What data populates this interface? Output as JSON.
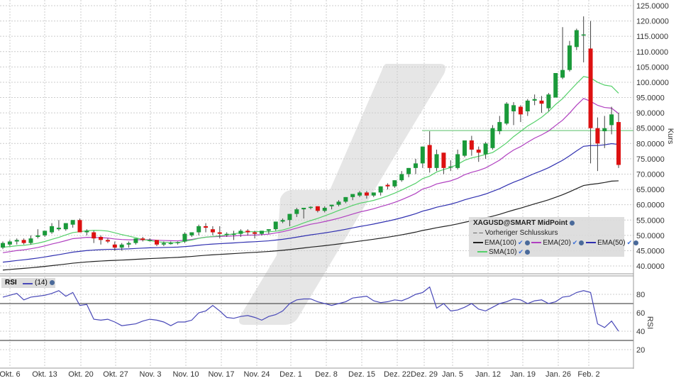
{
  "chart_data": [
    {
      "type": "candlestick",
      "instrument": "XAGUSD@SMART MidPoint",
      "ylabel": "Kurs",
      "ylim": [
        38,
        126
      ],
      "yticks": [
        "125.0000",
        "120.0000",
        "115.0000",
        "110.0000",
        "105.0000",
        "100.0000",
        "95.0000",
        "90.0000",
        "85.0000",
        "80.0000",
        "75.0000",
        "70.0000",
        "65.0000",
        "60.0000",
        "55.0000",
        "50.0000",
        "45.0000",
        "40.0000"
      ],
      "xticks": [
        "Okt. 6",
        "Okt. 13",
        "Okt. 20",
        "Okt. 27",
        "Nov. 3",
        "Nov. 10",
        "Nov. 17",
        "Nov. 24",
        "Dez. 1",
        "Dez. 8",
        "Dez. 15",
        "Dez. 22",
        "Dez. 29",
        "Jan. 5",
        "Jan. 12",
        "Jan. 19",
        "Jan. 26",
        "Feb. 2"
      ],
      "grid": true,
      "reference_line": 84.2,
      "ohlc": [
        [
          46,
          48,
          45.5,
          47.5
        ],
        [
          47,
          48.5,
          46.5,
          48
        ],
        [
          48,
          49,
          47,
          48.5
        ],
        [
          48.5,
          49,
          47,
          47.5
        ],
        [
          47.5,
          50,
          47,
          49
        ],
        [
          49.5,
          52,
          49,
          50
        ],
        [
          50,
          51.5,
          49.5,
          51.5
        ],
        [
          51,
          54,
          50.5,
          53
        ],
        [
          52,
          55,
          51.5,
          52.5
        ],
        [
          52,
          54,
          51.5,
          54
        ],
        [
          53.5,
          55,
          52.5,
          55
        ],
        [
          55,
          55.5,
          51,
          51
        ],
        [
          51,
          52,
          50,
          51.5
        ],
        [
          51,
          51.5,
          47.5,
          49
        ],
        [
          49.5,
          50,
          47,
          48.5
        ],
        [
          48.5,
          49,
          47.5,
          48
        ],
        [
          47,
          48,
          45,
          46
        ],
        [
          46,
          47.5,
          45,
          47
        ],
        [
          47,
          48,
          46,
          47.5
        ],
        [
          47.5,
          49,
          47,
          49
        ],
        [
          49,
          49.5,
          48,
          48.5
        ],
        [
          48.5,
          49,
          48,
          48.5
        ],
        [
          48.5,
          48.5,
          46.5,
          47
        ],
        [
          47,
          48,
          46.5,
          47.5
        ],
        [
          47.5,
          48,
          47,
          47.5
        ],
        [
          47.5,
          48,
          47,
          47.8
        ],
        [
          48,
          51,
          47.5,
          50.5
        ],
        [
          50,
          51,
          49.5,
          51
        ],
        [
          51,
          53.5,
          50,
          53
        ],
        [
          53,
          54,
          51,
          52.5
        ],
        [
          52,
          53,
          50,
          51
        ],
        [
          51,
          53,
          49,
          50.5
        ],
        [
          50.5,
          51,
          49.5,
          50.5
        ],
        [
          50.5,
          51.5,
          48.5,
          50.5
        ],
        [
          50.5,
          52,
          49.5,
          51.5
        ],
        [
          51.5,
          52,
          50,
          51
        ],
        [
          51,
          51.5,
          49,
          50.5
        ],
        [
          50.5,
          51.5,
          50,
          51.5
        ],
        [
          51.5,
          52,
          50.5,
          52
        ],
        [
          52,
          54.5,
          51.5,
          54.5
        ],
        [
          54.5,
          55.5,
          54,
          55
        ],
        [
          55,
          57,
          53,
          57
        ],
        [
          57,
          59,
          56,
          58.5
        ],
        [
          58.5,
          59,
          55.5,
          59
        ],
        [
          59,
          59.5,
          58.5,
          59.3
        ],
        [
          59.5,
          59.5,
          57.5,
          58
        ],
        [
          58,
          59.5,
          57.5,
          59
        ],
        [
          59.5,
          60,
          58.5,
          60
        ],
        [
          60,
          61.5,
          59.5,
          61
        ],
        [
          61,
          62.5,
          60.5,
          62.5
        ],
        [
          62.5,
          63,
          61.5,
          63.5
        ],
        [
          63,
          64.5,
          62.5,
          64
        ],
        [
          64,
          64.5,
          62,
          63
        ],
        [
          63,
          64,
          62.5,
          64
        ],
        [
          64,
          66,
          63,
          66
        ],
        [
          66.5,
          67,
          65,
          66
        ],
        [
          66,
          68,
          65.5,
          68
        ],
        [
          68,
          71,
          67.5,
          70
        ],
        [
          70,
          72,
          69,
          72
        ],
        [
          72,
          75,
          70,
          73.5
        ],
        [
          73.5,
          79,
          72,
          79
        ],
        [
          79.5,
          84,
          70.5,
          72
        ],
        [
          72,
          78,
          71,
          76.5
        ],
        [
          77,
          77,
          70,
          72
        ],
        [
          72.5,
          74.5,
          71,
          72.5
        ],
        [
          72,
          78,
          71.5,
          76.5
        ],
        [
          76,
          81,
          75.5,
          81
        ],
        [
          81,
          82.5,
          76,
          78
        ],
        [
          78,
          79,
          74,
          77
        ],
        [
          76.5,
          80.5,
          75,
          80
        ],
        [
          78.5,
          86,
          78,
          85
        ],
        [
          84,
          89,
          83,
          87
        ],
        [
          86.5,
          93.5,
          86,
          93
        ],
        [
          90.5,
          93.5,
          86,
          92.5
        ],
        [
          92,
          92.5,
          87,
          89.5
        ],
        [
          90.5,
          94.5,
          89,
          94
        ],
        [
          94,
          96,
          92.5,
          94.5
        ],
        [
          94,
          95.5,
          90,
          93
        ],
        [
          91.5,
          96.5,
          90.5,
          96
        ],
        [
          95,
          103,
          95,
          103
        ],
        [
          101.5,
          118,
          101,
          104
        ],
        [
          104,
          113.5,
          103.5,
          112
        ],
        [
          111.5,
          117.5,
          110.5,
          117
        ],
        [
          115.5,
          121.5,
          106.5,
          115.6
        ],
        [
          111,
          120,
          73.5,
          85
        ],
        [
          85,
          88.5,
          71,
          80
        ],
        [
          84,
          89,
          78.5,
          85
        ],
        [
          86,
          92,
          83,
          89.5
        ],
        [
          87,
          90,
          72,
          73
        ]
      ],
      "colors": {
        "up": "#1a9a3a",
        "down": "#dd1111",
        "sma10": "#55d06a",
        "ema20": "#b040c0",
        "ema50": "#3030b0",
        "ema100": "#222222",
        "ref": "#8fd49a"
      },
      "legend": {
        "title": "XAGUSD@SMART MidPoint",
        "prev_close": "Vorheriger Schlusskurs",
        "ema100": "EMA(100)",
        "ema20": "EMA(20)",
        "ema50": "EMA(50)",
        "sma10": "SMA(10)"
      }
    },
    {
      "type": "line",
      "title": "RSI",
      "series_label": "(14)",
      "ylim": [
        5,
        95
      ],
      "yticks": [
        "80",
        "60",
        "40",
        "20"
      ],
      "levels": [
        70,
        30
      ],
      "color": "#4848b8",
      "values": [
        77,
        79,
        81,
        74,
        77,
        78,
        79,
        81,
        84,
        78,
        82,
        68,
        69,
        53,
        52,
        53,
        50,
        46,
        47,
        48,
        51,
        53,
        52,
        50,
        46,
        50,
        50,
        52,
        60,
        62,
        68,
        62,
        55,
        54,
        56,
        57,
        55,
        52,
        56,
        58,
        62,
        70,
        74,
        75,
        75,
        72,
        70,
        68,
        70,
        72,
        76,
        77,
        78,
        73,
        71,
        72,
        74,
        73,
        76,
        80,
        82,
        88,
        65,
        70,
        62,
        63,
        66,
        70,
        64,
        62,
        66,
        70,
        72,
        75,
        74,
        70,
        73,
        74,
        70,
        72,
        77,
        78,
        82,
        84,
        82,
        48,
        44,
        51,
        40
      ]
    }
  ]
}
